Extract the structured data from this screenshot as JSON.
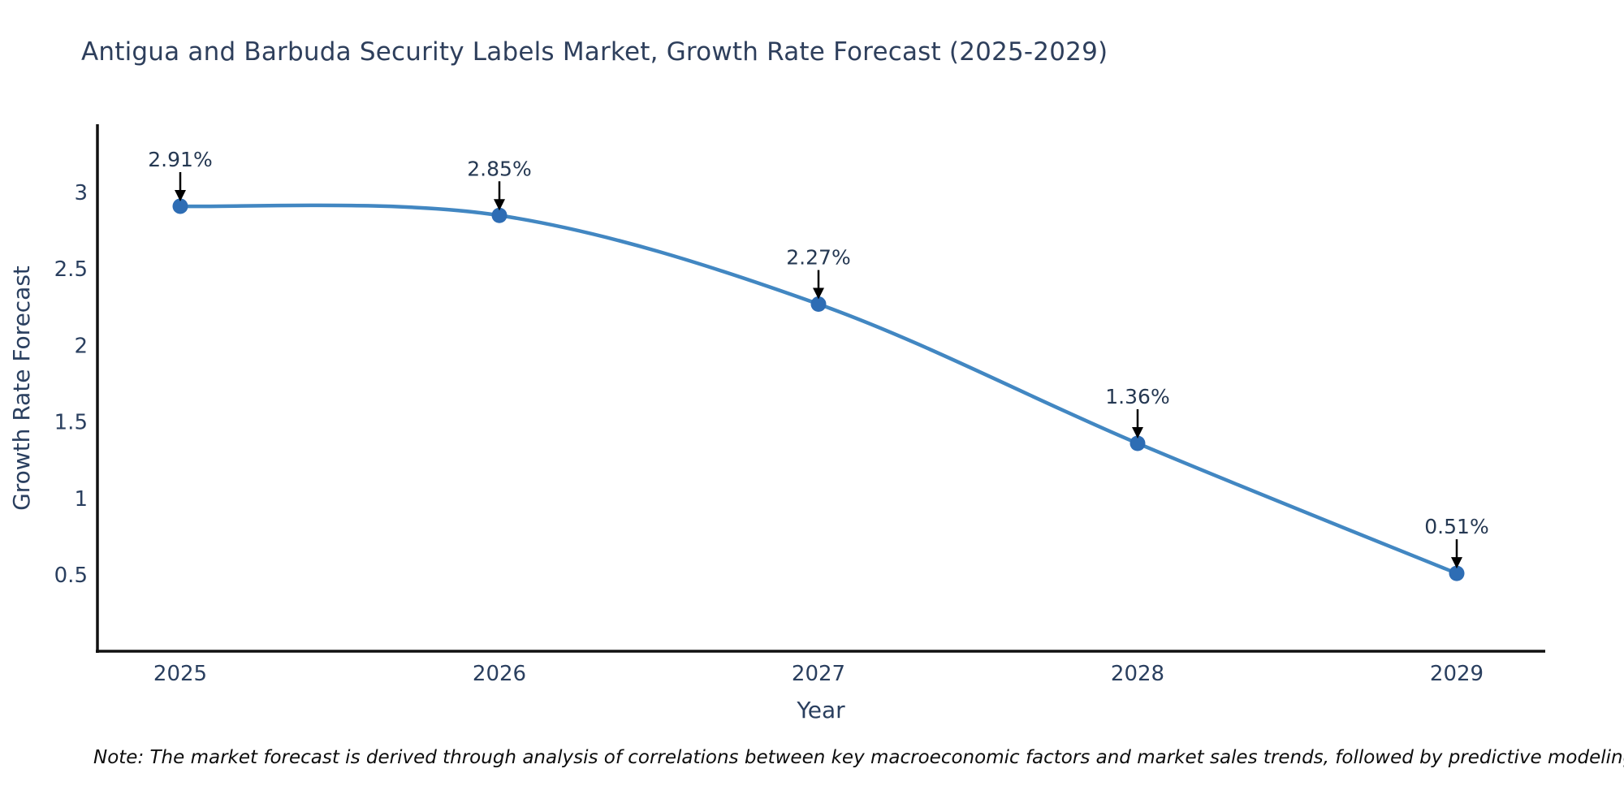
{
  "page": {
    "title": "Antigua and Barbuda Security Labels Market, Growth Rate Forecast (2025-2029)",
    "note": "Note: The market forecast is derived through analysis of correlations between key macroeconomic factors and market sales trends, followed by predictive modeling to project future sales"
  },
  "chart_data": {
    "type": "line",
    "title": "Antigua and Barbuda Security Labels Market, Growth Rate Forecast (2025-2029)",
    "xlabel": "Year",
    "ylabel": "Growth Rate Forecast",
    "x": [
      "2025",
      "2026",
      "2027",
      "2028",
      "2029"
    ],
    "values": [
      2.91,
      2.85,
      2.27,
      1.36,
      0.51
    ],
    "point_labels": [
      "2.91%",
      "2.85%",
      "2.27%",
      "1.36%",
      "0.51%"
    ],
    "ytick_labels": [
      "3",
      "2.5",
      "2",
      "1.5",
      "1",
      "0.5"
    ],
    "ytick_values": [
      3,
      2.5,
      2,
      1.5,
      1,
      0.5
    ],
    "ylim": [
      0,
      3.45
    ],
    "line_shape": "spline",
    "grid": false,
    "legend": "none",
    "annotation_arrows": true,
    "colors": {
      "line": "#4287c2",
      "marker": "#2e6db4",
      "axis": "#111111",
      "text": "#2a3f5f",
      "arrow": "#000000"
    }
  }
}
